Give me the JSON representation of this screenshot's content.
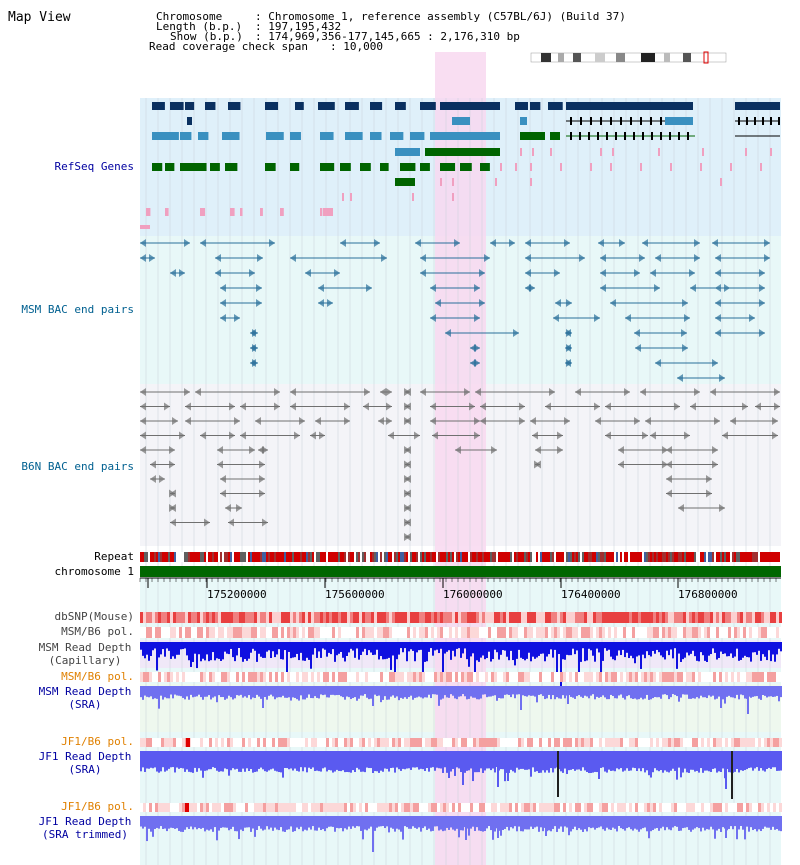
{
  "page": {
    "title": "Map View"
  },
  "header": {
    "chromosome_key": "Chromosome",
    "chromosome_val": ": Chromosome 1, reference assembly (C57BL/6J) (Build 37)",
    "length_key": "Length (b.p.)",
    "length_val": ": 197,195,432",
    "show_key": "Show (b.p.)",
    "show_val": ": 174,969,356-177,145,665 : 2,176,310 bp",
    "span_key": "Read coverage check span",
    "span_val": ": 10,000"
  },
  "tracks": {
    "refseq": "RefSeq Genes",
    "msm_bac": "MSM BAC end pairs",
    "b6n_bac": "B6N BAC end pairs",
    "repeat": "Repeat",
    "chromosome": "chromosome 1",
    "dbsnp": "dbSNP(Mouse)",
    "msm_b6_pol_1": "MSM/B6 pol.",
    "msm_read_depth_cap_1": "MSM Read Depth",
    "msm_read_depth_cap_2": "(Capillary)",
    "msm_b6_pol_2": "MSM/B6 pol.",
    "msm_read_depth_sra_1": "MSM Read Depth",
    "msm_read_depth_sra_2": "(SRA)",
    "jf1_b6_pol_1": "JF1/B6 pol.",
    "jf1_read_depth_sra_1": "JF1 Read Depth",
    "jf1_read_depth_sra_2": "(SRA)",
    "jf1_b6_pol_2": "JF1/B6 pol.",
    "jf1_read_depth_trim_1": "JF1 Read Depth",
    "jf1_read_depth_trim_2": "(SRA trimmed)"
  },
  "ruler": {
    "ticks": [
      "175200000",
      "175600000",
      "176000000",
      "176400000",
      "176800000"
    ]
  },
  "colors": {
    "refseq_bg": "#dff0fa",
    "msm_bg": "#e8f8f8",
    "b6n_bg": "#f4f4f8",
    "highlight": "#f8d8f0",
    "gene_dark": "#0a3060",
    "gene_mid": "#3a90c0",
    "gene_green": "#006400",
    "msm_line": "#2a6f9a",
    "b6n_line": "#707070",
    "chrom_green": "#006600",
    "depth_cap": "#1010e0",
    "depth_sra": "#7070f0",
    "label_blue": "#0000a0",
    "label_orange": "#e08000",
    "label_teal": "#006090"
  }
}
